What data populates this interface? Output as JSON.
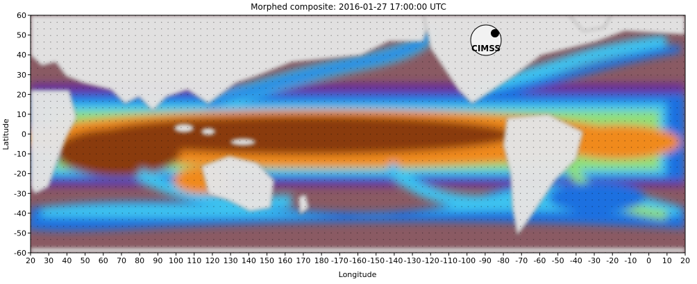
{
  "title": "Morphed composite: 2016-01-27 17:00:00 UTC",
  "axes": {
    "xlabel": "Longitude",
    "ylabel": "Latitude",
    "x_ticks": [
      "20",
      "30",
      "40",
      "50",
      "60",
      "70",
      "80",
      "90",
      "100",
      "110",
      "120",
      "130",
      "140",
      "150",
      "160",
      "170",
      "180",
      "-170",
      "-160",
      "-150",
      "-140",
      "-130",
      "-120",
      "-110",
      "-100",
      "-90",
      "-80",
      "-70",
      "-60",
      "-50",
      "-40",
      "-30",
      "-20",
      "-10",
      "0",
      "10",
      "20"
    ],
    "y_ticks": [
      "60",
      "50",
      "40",
      "30",
      "20",
      "10",
      "0",
      "-10",
      "-20",
      "-30",
      "-40",
      "-50",
      "-60"
    ]
  },
  "logo": {
    "text": "CIMSS"
  },
  "colors": {
    "land": "#e3e3e3",
    "dry": "#8a5a63",
    "purple": "#6a2c9a",
    "blue": "#1f6fe0",
    "cyan": "#3cc3f0",
    "green": "#8ee07a",
    "yellow": "#f0e060",
    "orange": "#f08a1e",
    "brown": "#8a3a10"
  }
}
